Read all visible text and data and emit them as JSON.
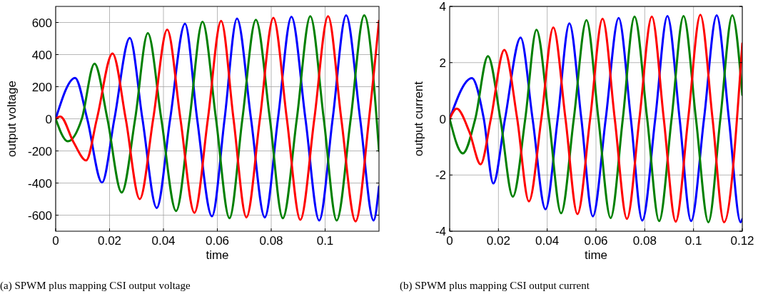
{
  "chart_data": [
    {
      "type": "line",
      "xlabel": "time",
      "ylabel": "output voltage",
      "xlim": [
        0,
        0.12
      ],
      "xticks": [
        0,
        0.02,
        0.04,
        0.06,
        0.08,
        0.1
      ],
      "ylim": [
        -700,
        700
      ],
      "yticks": [
        -600,
        -400,
        -200,
        0,
        200,
        400,
        600
      ],
      "grid": true,
      "annotations": [
        "(a) SPWM plus mapping CSI output voltage"
      ],
      "series": [
        {
          "color": "#0000ff",
          "x": [
            0,
            0.0072,
            0.0117,
            0.0172,
            0.0218,
            0.0275,
            0.0322,
            0.0375,
            0.0425,
            0.048,
            0.0525,
            0.058,
            0.0627,
            0.0673,
            0.0725,
            0.0776,
            0.0825,
            0.0875,
            0.0927,
            0.0978,
            0.1028,
            0.1078,
            0.113,
            0.118,
            0.12
          ],
          "values": [
            0,
            255,
            0,
            -397,
            0,
            503,
            0,
            -555,
            0,
            592,
            0,
            -607,
            0,
            625,
            0,
            -614,
            0,
            636,
            0,
            -633,
            0,
            644,
            0,
            -633,
            -422
          ]
        },
        {
          "color": "#008000",
          "x": [
            0,
            0.0045,
            0.0097,
            0.0144,
            0.0192,
            0.0245,
            0.0295,
            0.0342,
            0.0392,
            0.0447,
            0.0497,
            0.0545,
            0.0595,
            0.0645,
            0.0693,
            0.0743,
            0.0795,
            0.0843,
            0.0895,
            0.0945,
            0.0995,
            0.1043,
            0.1095,
            0.1145,
            0.12
          ],
          "values": [
            0,
            -140,
            0,
            343,
            0,
            -459,
            0,
            533,
            0,
            -574,
            0,
            604,
            0,
            -619,
            0,
            617,
            0,
            -619,
            0,
            639,
            0,
            -633,
            0,
            644,
            -200
          ]
        },
        {
          "color": "#ff0000",
          "x": [
            0,
            0.0017,
            0.0067,
            0.0113,
            0.0153,
            0.0211,
            0.026,
            0.0312,
            0.0362,
            0.0414,
            0.0463,
            0.0515,
            0.0565,
            0.0614,
            0.066,
            0.0708,
            0.0758,
            0.0808,
            0.0858,
            0.0908,
            0.096,
            0.1011,
            0.106,
            0.1113,
            0.1163,
            0.12
          ],
          "values": [
            0,
            15,
            -148,
            -259,
            0,
            407,
            0,
            -500,
            0,
            555,
            0,
            -585,
            0,
            610,
            0,
            -614,
            0,
            629,
            0,
            -629,
            0,
            639,
            0,
            -639,
            0,
            610
          ]
        }
      ]
    },
    {
      "type": "line",
      "xlabel": "time",
      "ylabel": "output current",
      "xlim": [
        0,
        0.12
      ],
      "xticks": [
        0,
        0.02,
        0.04,
        0.06,
        0.08,
        0.1,
        0.12
      ],
      "ylim": [
        -4,
        4
      ],
      "yticks": [
        -4,
        -2,
        0,
        2,
        4
      ],
      "grid": true,
      "annotations": [
        "(b) SPWM plus mapping CSI output current"
      ],
      "series": [
        {
          "color": "#0000ff",
          "x": [
            0,
            0.0091,
            0.014,
            0.0179,
            0.0227,
            0.0291,
            0.034,
            0.0393,
            0.0443,
            0.0491,
            0.054,
            0.0587,
            0.064,
            0.0693,
            0.0743,
            0.079,
            0.0843,
            0.0893,
            0.0943,
            0.099,
            0.1043,
            0.1095,
            0.1145,
            0.1193,
            0.12
          ],
          "values": [
            0,
            1.45,
            0,
            -2.3,
            0,
            2.89,
            0,
            -3.22,
            0,
            3.4,
            0,
            -3.47,
            0,
            3.59,
            0,
            -3.62,
            0,
            3.66,
            0,
            -3.64,
            0,
            3.68,
            0,
            -3.68,
            -3.57
          ]
        },
        {
          "color": "#008000",
          "x": [
            0,
            0.0054,
            0.0105,
            0.0157,
            0.0208,
            0.0259,
            0.031,
            0.0356,
            0.0407,
            0.0457,
            0.0509,
            0.0561,
            0.061,
            0.066,
            0.071,
            0.0758,
            0.081,
            0.0859,
            0.091,
            0.0959,
            0.101,
            0.1061,
            0.111,
            0.1159,
            0.12
          ],
          "values": [
            0,
            -1.23,
            0,
            2.23,
            0,
            -2.77,
            0,
            3.17,
            0,
            -3.36,
            0,
            3.51,
            0,
            -3.53,
            0,
            3.64,
            0,
            -3.64,
            0,
            3.66,
            0,
            -3.68,
            0,
            3.68,
            0.85
          ]
        },
        {
          "color": "#ff0000",
          "x": [
            0,
            0.0029,
            0.0081,
            0.0127,
            0.0169,
            0.0224,
            0.0277,
            0.0325,
            0.0376,
            0.0425,
            0.0475,
            0.0524,
            0.0576,
            0.0627,
            0.0677,
            0.0727,
            0.0778,
            0.0829,
            0.0878,
            0.0927,
            0.0978,
            0.1028,
            0.1078,
            0.1125,
            0.12
          ],
          "values": [
            0,
            0.36,
            -0.47,
            -1.62,
            0,
            2.45,
            0,
            -2.94,
            0,
            3.25,
            0,
            -3.39,
            0,
            3.56,
            0,
            -3.56,
            0,
            3.64,
            0,
            -3.66,
            0,
            3.7,
            0,
            -3.68,
            2.68
          ]
        }
      ]
    }
  ]
}
